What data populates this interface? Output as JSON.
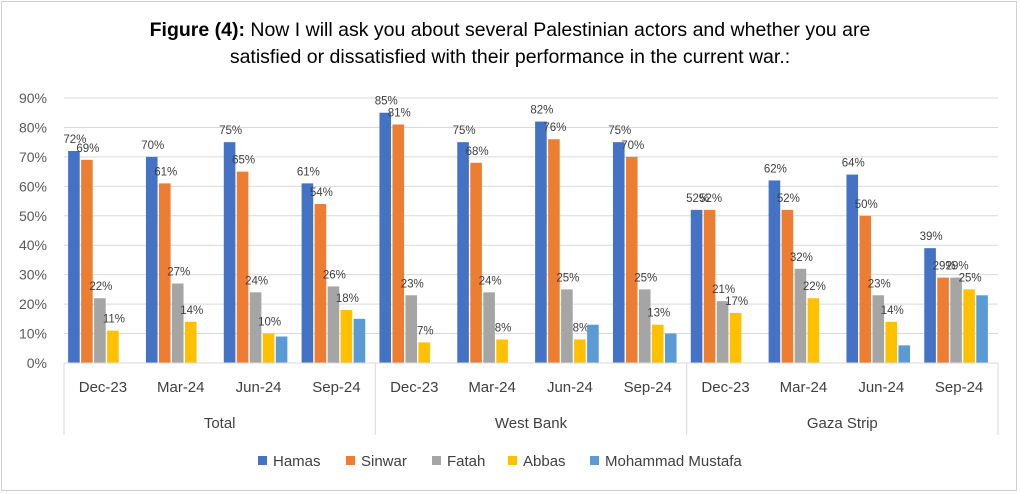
{
  "title": {
    "prefix": "Figure (4):",
    "line1": " Now I will ask you about several Palestinian actors and whether you are",
    "line2": "satisfied or dissatisfied with their performance in the current war.:"
  },
  "chart_data": {
    "type": "bar",
    "groups": [
      {
        "name": "Total",
        "categories": [
          "Dec-23",
          "Mar-24",
          "Jun-24",
          "Sep-24"
        ]
      },
      {
        "name": "West Bank",
        "categories": [
          "Dec-23",
          "Mar-24",
          "Jun-24",
          "Sep-24"
        ]
      },
      {
        "name": "Gaza Strip",
        "categories": [
          "Dec-23",
          "Mar-24",
          "Jun-24",
          "Sep-24"
        ]
      }
    ],
    "series": [
      {
        "name": "Hamas",
        "color": "#4472C4",
        "values": [
          72,
          70,
          75,
          61,
          85,
          75,
          82,
          75,
          52,
          62,
          64,
          39
        ],
        "labels": [
          "72%",
          "70%",
          "75%",
          "61%",
          "85%",
          "75%",
          "82%",
          "75%",
          "52%",
          "62%",
          "64%",
          "39%"
        ]
      },
      {
        "name": "Sinwar",
        "color": "#ED7D31",
        "values": [
          69,
          61,
          65,
          54,
          81,
          68,
          76,
          70,
          52,
          52,
          50,
          29
        ],
        "labels": [
          "69%",
          "61%",
          "65%",
          "54%",
          "81%",
          "68%",
          "76%",
          "70%",
          "52%",
          "52%",
          "50%",
          "29%"
        ]
      },
      {
        "name": "Fatah",
        "color": "#A5A5A5",
        "values": [
          22,
          27,
          24,
          26,
          23,
          24,
          25,
          25,
          21,
          32,
          23,
          29
        ],
        "labels": [
          "22%",
          "27%",
          "24%",
          "26%",
          "23%",
          "24%",
          "25%",
          "25%",
          "21%",
          "32%",
          "23%",
          "29%"
        ]
      },
      {
        "name": "Abbas",
        "color": "#FFC000",
        "values": [
          11,
          14,
          10,
          18,
          7,
          8,
          8,
          13,
          17,
          22,
          14,
          25
        ],
        "labels": [
          "11%",
          "14%",
          "10%",
          "18%",
          "7%",
          "8%",
          "8%",
          "13%",
          "17%",
          "22%",
          "14%",
          "25%"
        ]
      },
      {
        "name": "Mohammad Mustafa",
        "color": "#5B9BD5",
        "values": [
          null,
          null,
          9,
          15,
          null,
          null,
          13,
          10,
          null,
          null,
          6,
          23
        ],
        "labels": [
          null,
          null,
          null,
          null,
          null,
          null,
          null,
          null,
          null,
          null,
          null,
          null
        ]
      }
    ],
    "y_ticks": [
      "0%",
      "10%",
      "20%",
      "30%",
      "40%",
      "50%",
      "60%",
      "70%",
      "80%",
      "90%"
    ],
    "ylim": [
      0,
      90
    ],
    "grid": true,
    "legend_position": "bottom"
  }
}
